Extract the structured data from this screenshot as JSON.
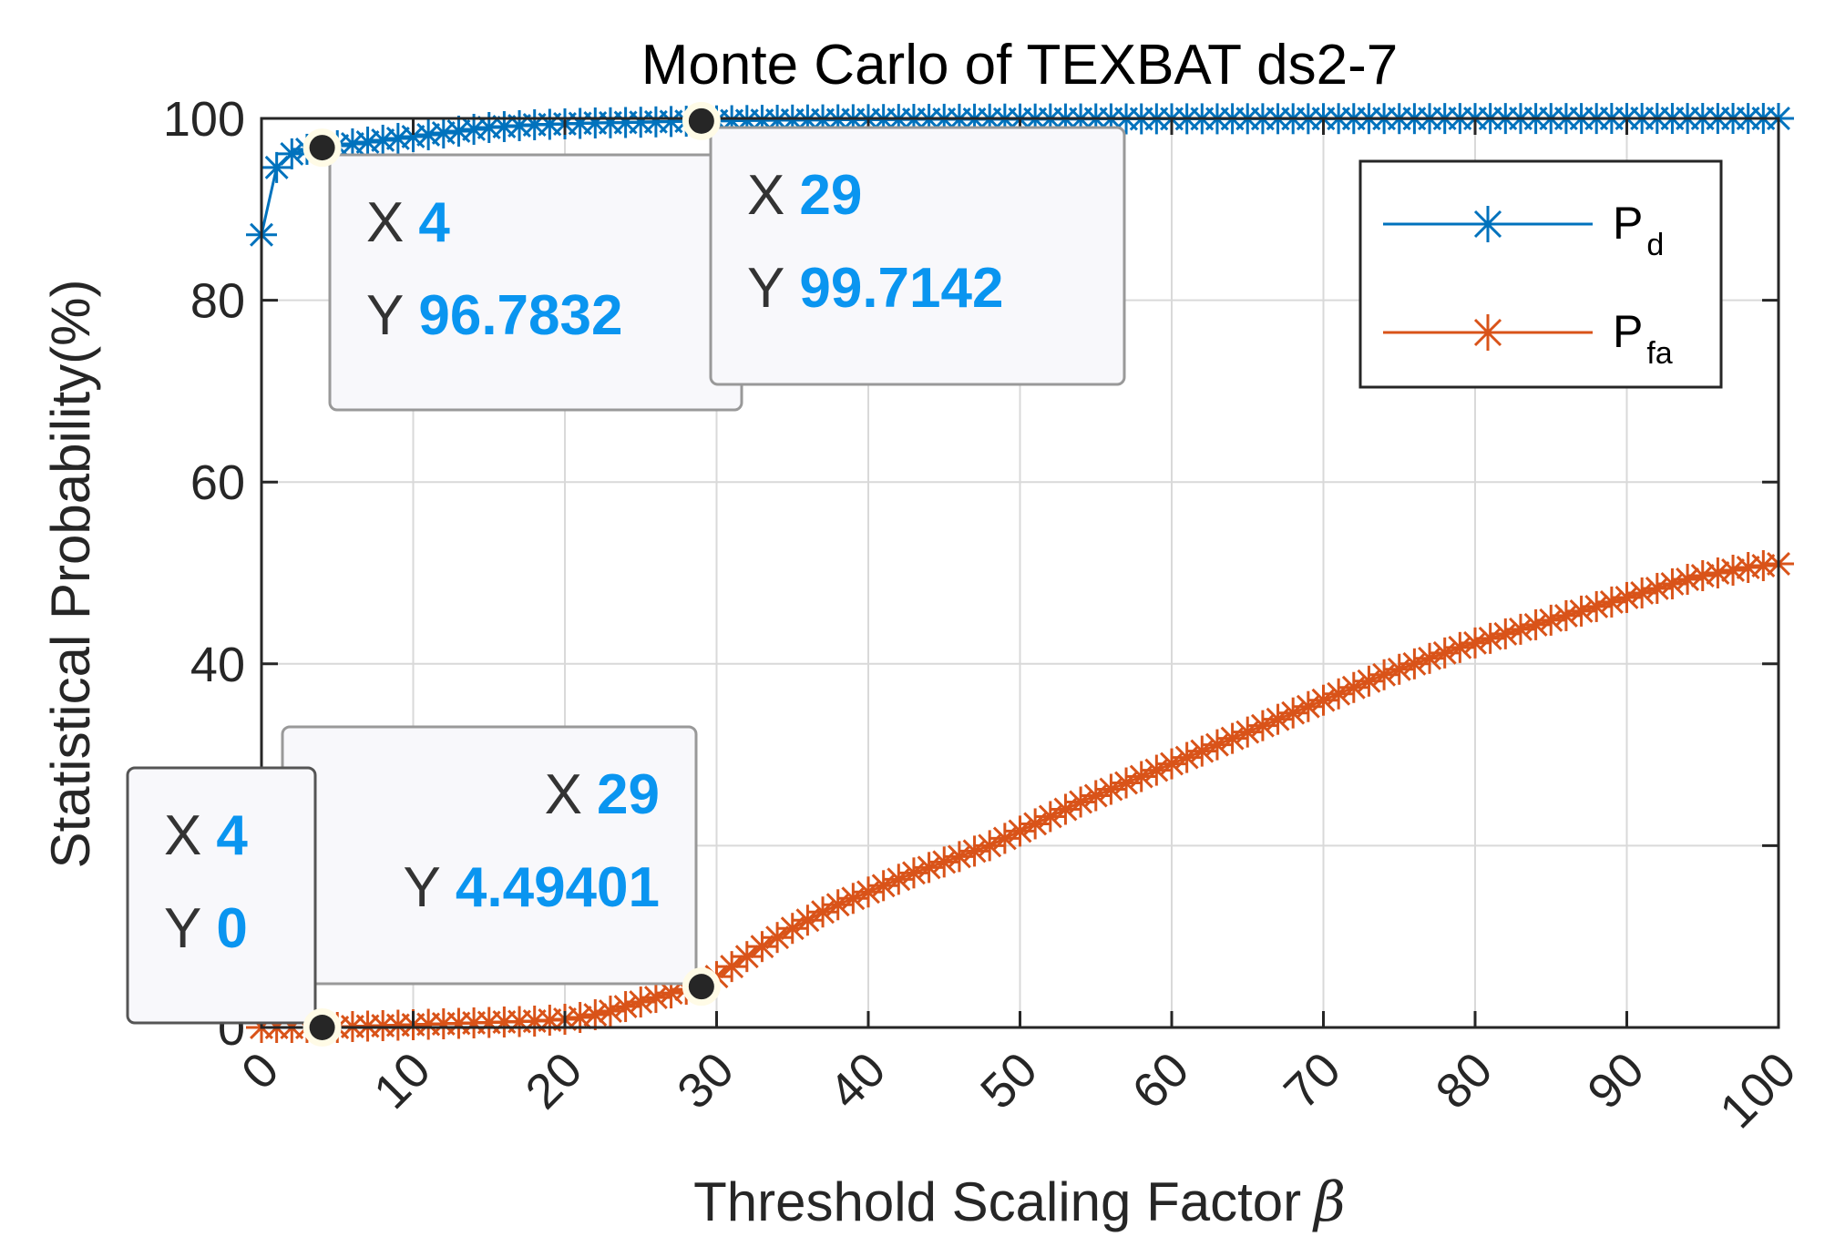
{
  "chart_data": {
    "type": "line",
    "title": "Monte Carlo of TEXBAT ds2-7",
    "xlabel": "Threshold Scaling Factor",
    "xlabel_symbol": "β",
    "ylabel": "Statistical Probability(%)",
    "xlim": [
      0,
      100
    ],
    "ylim": [
      0,
      100
    ],
    "xticks": [
      "0",
      "10",
      "20",
      "30",
      "40",
      "50",
      "60",
      "70",
      "80",
      "90",
      "100"
    ],
    "yticks": [
      "0",
      "20",
      "40",
      "60",
      "80",
      "100"
    ],
    "grid": true,
    "legend_position": "top-right",
    "x": [
      0,
      1,
      2,
      3,
      4,
      5,
      6,
      7,
      8,
      9,
      10,
      11,
      12,
      13,
      14,
      15,
      16,
      17,
      18,
      19,
      20,
      21,
      22,
      23,
      24,
      25,
      26,
      27,
      28,
      29,
      30,
      31,
      32,
      33,
      34,
      35,
      36,
      37,
      38,
      39,
      40,
      41,
      42,
      43,
      44,
      45,
      46,
      47,
      48,
      49,
      50,
      51,
      52,
      53,
      54,
      55,
      56,
      57,
      58,
      59,
      60,
      61,
      62,
      63,
      64,
      65,
      66,
      67,
      68,
      69,
      70,
      71,
      72,
      73,
      74,
      75,
      76,
      77,
      78,
      79,
      80,
      81,
      82,
      83,
      84,
      85,
      86,
      87,
      88,
      89,
      90,
      91,
      92,
      93,
      94,
      95,
      96,
      97,
      98,
      99,
      100
    ],
    "series": [
      {
        "name": "P",
        "name_sub": "d",
        "color": "#0072bd",
        "values": [
          87.2,
          94.6,
          96.1,
          96.6,
          96.78,
          97.0,
          97.2,
          97.4,
          97.6,
          97.8,
          98.0,
          98.2,
          98.4,
          98.6,
          98.8,
          99.0,
          99.1,
          99.2,
          99.3,
          99.35,
          99.4,
          99.45,
          99.5,
          99.52,
          99.55,
          99.58,
          99.62,
          99.66,
          99.69,
          99.7142,
          99.73,
          99.75,
          99.77,
          99.79,
          99.8,
          99.82,
          99.83,
          99.84,
          99.85,
          99.86,
          99.87,
          99.88,
          99.89,
          99.9,
          99.9,
          99.91,
          99.91,
          99.92,
          99.92,
          99.93,
          99.93,
          99.93,
          99.94,
          99.94,
          99.94,
          99.95,
          99.95,
          99.95,
          99.95,
          99.96,
          99.96,
          99.96,
          99.96,
          99.96,
          99.97,
          99.97,
          99.97,
          99.97,
          99.97,
          99.97,
          99.98,
          99.98,
          99.98,
          99.98,
          99.98,
          99.98,
          99.98,
          99.98,
          99.99,
          99.99,
          99.99,
          99.99,
          99.99,
          99.99,
          99.99,
          99.99,
          99.99,
          99.99,
          99.99,
          100,
          100,
          100,
          100,
          100,
          100,
          100,
          100,
          100,
          100,
          100,
          100
        ]
      },
      {
        "name": "P",
        "name_sub": "fa",
        "color": "#d95319",
        "values": [
          0,
          0,
          0,
          0,
          0,
          0,
          0.1,
          0.15,
          0.2,
          0.25,
          0.3,
          0.35,
          0.4,
          0.45,
          0.5,
          0.55,
          0.6,
          0.65,
          0.7,
          0.8,
          0.9,
          1.1,
          1.4,
          1.8,
          2.3,
          2.8,
          3.3,
          3.8,
          4.2,
          4.494,
          5.6,
          6.7,
          7.8,
          8.9,
          9.9,
          10.9,
          11.8,
          12.7,
          13.5,
          14.2,
          14.9,
          15.6,
          16.3,
          17.0,
          17.6,
          18.2,
          18.8,
          19.4,
          20.0,
          20.8,
          21.6,
          22.4,
          23.2,
          24.0,
          24.8,
          25.5,
          26.2,
          26.9,
          27.6,
          28.3,
          29.0,
          29.7,
          30.4,
          31.1,
          31.8,
          32.5,
          33.2,
          33.9,
          34.6,
          35.3,
          36.0,
          36.7,
          37.4,
          38.1,
          38.8,
          39.4,
          40.0,
          40.6,
          41.2,
          41.8,
          42.3,
          42.8,
          43.3,
          43.8,
          44.3,
          44.8,
          45.3,
          45.8,
          46.3,
          46.8,
          47.3,
          47.8,
          48.3,
          48.8,
          49.3,
          49.7,
          50.0,
          50.3,
          50.6,
          50.8,
          51.0
        ]
      }
    ],
    "datatips": [
      {
        "x": 4,
        "y": 96.7832,
        "x_label": "X",
        "x_value": "4",
        "y_label": "Y",
        "y_value": "96.7832"
      },
      {
        "x": 29,
        "y": 99.7142,
        "x_label": "X",
        "x_value": "29",
        "y_label": "Y",
        "y_value": "99.7142"
      },
      {
        "x": 29,
        "y": 4.49401,
        "x_label": "X",
        "x_value": "29",
        "y_label": "Y",
        "y_value": "4.49401"
      },
      {
        "x": 4,
        "y": 0,
        "x_label": "X",
        "x_value": "4",
        "y_label": "Y",
        "y_value": "0"
      }
    ]
  }
}
